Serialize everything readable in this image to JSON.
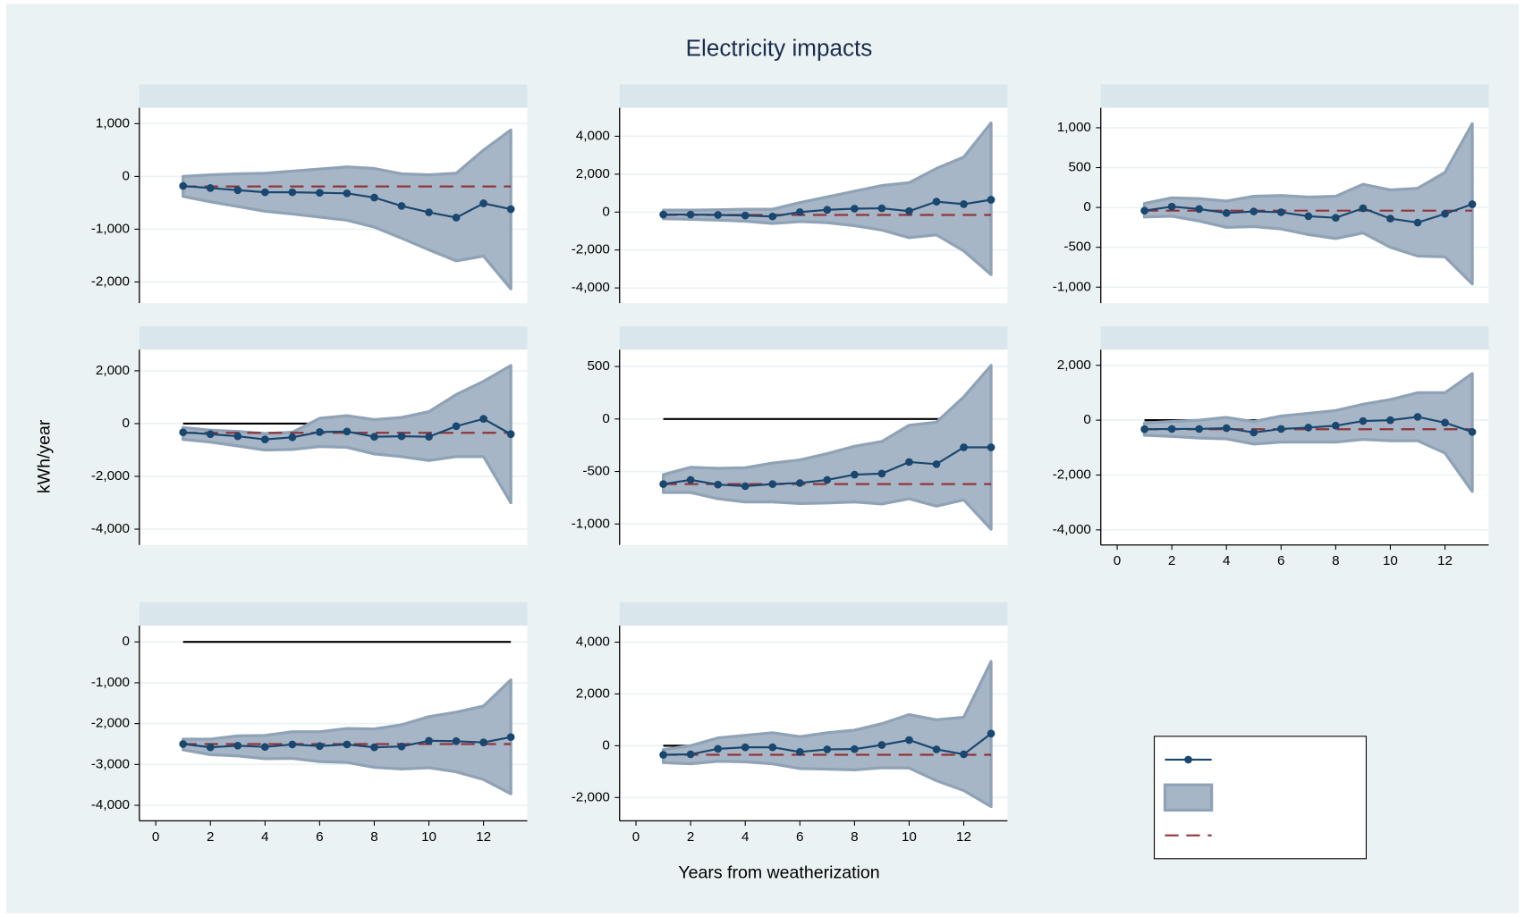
{
  "title": "Electricity impacts",
  "y_axis_label": "kWh/year",
  "x_axis_label": "Years from weatherization",
  "chart_data": [
    {
      "type": "line",
      "x": [
        1,
        2,
        3,
        4,
        5,
        6,
        7,
        8,
        9,
        10,
        11,
        12,
        13
      ],
      "xlim": [
        -0.6,
        13.6
      ],
      "ylim": [
        -2400,
        1300
      ],
      "yticks": [
        {
          "value": 1000,
          "label": "1,000"
        },
        0,
        {
          "value": -1000,
          "label": "-1,000"
        },
        {
          "value": -2000,
          "label": "-2,000"
        }
      ],
      "grid": true,
      "series": [
        {
          "color": "#1a476f",
          "values": [
            -180,
            -220,
            -260,
            -300,
            -300,
            -310,
            -320,
            -400,
            -560,
            -680,
            -780,
            -510,
            -620
          ]
        }
      ],
      "band": {
        "color": "#a7b6c6",
        "upper": [
          0,
          30,
          50,
          60,
          100,
          140,
          180,
          150,
          50,
          30,
          60,
          500,
          880
        ],
        "lower": [
          -380,
          -480,
          -570,
          -660,
          -710,
          -770,
          -830,
          -960,
          -1170,
          -1390,
          -1600,
          -1510,
          -2130
        ]
      },
      "mean": {
        "color": "#90353b",
        "value": -190
      },
      "reference_line": 0
    },
    {
      "type": "line",
      "x": [
        1,
        2,
        3,
        4,
        5,
        6,
        7,
        8,
        9,
        10,
        11,
        12,
        13
      ],
      "xlim": [
        -0.6,
        13.6
      ],
      "ylim": [
        -4800,
        5500
      ],
      "yticks": [
        {
          "value": 4000,
          "label": "4,000"
        },
        {
          "value": 2000,
          "label": "2,000"
        },
        0,
        {
          "value": -2000,
          "label": "-2,000"
        },
        {
          "value": -4000,
          "label": "-4,000"
        }
      ],
      "grid": true,
      "series": [
        {
          "color": "#1a476f",
          "values": [
            -130,
            -130,
            -150,
            -180,
            -230,
            0,
            120,
            180,
            200,
            50,
            550,
            420,
            650
          ]
        }
      ],
      "band": {
        "color": "#a7b6c6",
        "upper": [
          100,
          100,
          120,
          150,
          150,
          500,
          800,
          1100,
          1400,
          1550,
          2300,
          2900,
          4700
        ],
        "lower": [
          -350,
          -380,
          -420,
          -480,
          -600,
          -500,
          -560,
          -720,
          -950,
          -1350,
          -1200,
          -2050,
          -3300
        ]
      },
      "mean": {
        "color": "#90353b",
        "value": -150
      },
      "reference_line": 0
    },
    {
      "type": "line",
      "x": [
        1,
        2,
        3,
        4,
        5,
        6,
        7,
        8,
        9,
        10,
        11,
        12,
        13
      ],
      "xlim": [
        -0.6,
        13.6
      ],
      "ylim": [
        -1200,
        1250
      ],
      "yticks": [
        {
          "value": 1000,
          "label": "1,000"
        },
        500,
        0,
        -500,
        {
          "value": -1000,
          "label": "-1,000"
        }
      ],
      "grid": true,
      "series": [
        {
          "color": "#1a476f",
          "values": [
            -40,
            10,
            -20,
            -70,
            -50,
            -60,
            -110,
            -130,
            -10,
            -140,
            -190,
            -80,
            40
          ]
        }
      ],
      "band": {
        "color": "#a7b6c6",
        "upper": [
          50,
          120,
          110,
          80,
          140,
          150,
          130,
          140,
          290,
          220,
          240,
          440,
          1050
        ],
        "lower": [
          -120,
          -110,
          -170,
          -250,
          -240,
          -270,
          -340,
          -390,
          -320,
          -500,
          -610,
          -620,
          -960
        ]
      },
      "mean": {
        "color": "#90353b",
        "value": -40
      },
      "reference_line": 0
    },
    {
      "type": "line",
      "x": [
        1,
        2,
        3,
        4,
        5,
        6,
        7,
        8,
        9,
        10,
        11,
        12,
        13
      ],
      "xlim": [
        -0.6,
        13.6
      ],
      "ylim": [
        -4600,
        2800
      ],
      "yticks": [
        {
          "value": 2000,
          "label": "2,000"
        },
        0,
        {
          "value": -2000,
          "label": "-2,000"
        },
        {
          "value": -4000,
          "label": "-4,000"
        }
      ],
      "grid": true,
      "series": [
        {
          "color": "#1a476f",
          "values": [
            -330,
            -400,
            -480,
            -600,
            -520,
            -320,
            -300,
            -500,
            -480,
            -500,
            -100,
            180,
            -400
          ]
        }
      ],
      "band": {
        "color": "#a7b6c6",
        "upper": [
          -150,
          -250,
          -300,
          -380,
          -330,
          200,
          300,
          150,
          230,
          450,
          1100,
          1600,
          2200
        ],
        "lower": [
          -600,
          -700,
          -850,
          -1000,
          -980,
          -870,
          -900,
          -1150,
          -1250,
          -1400,
          -1250,
          -1250,
          -3000
        ]
      },
      "mean": {
        "color": "#90353b",
        "value": -350
      },
      "reference_line": 0
    },
    {
      "type": "line",
      "x": [
        1,
        2,
        3,
        4,
        5,
        6,
        7,
        8,
        9,
        10,
        11,
        12,
        13
      ],
      "xlim": [
        -0.6,
        13.6
      ],
      "ylim": [
        -1200,
        660
      ],
      "yticks": [
        500,
        0,
        -500,
        {
          "value": -1000,
          "label": "-1,000"
        }
      ],
      "grid": true,
      "series": [
        {
          "color": "#1a476f",
          "values": [
            -620,
            -580,
            -625,
            -640,
            -620,
            -610,
            -580,
            -530,
            -520,
            -410,
            -430,
            -270,
            -270
          ]
        }
      ],
      "band": {
        "color": "#a7b6c6",
        "upper": [
          -530,
          -460,
          -470,
          -465,
          -420,
          -390,
          -330,
          -260,
          -215,
          -60,
          -30,
          210,
          510
        ],
        "lower": [
          -700,
          -700,
          -760,
          -790,
          -790,
          -805,
          -800,
          -790,
          -810,
          -760,
          -830,
          -770,
          -1050
        ]
      },
      "mean": {
        "color": "#90353b",
        "value": -620
      },
      "reference_line": 0
    },
    {
      "type": "line",
      "x": [
        1,
        2,
        3,
        4,
        5,
        6,
        7,
        8,
        9,
        10,
        11,
        12,
        13
      ],
      "xlim": [
        -0.6,
        13.6
      ],
      "ylim": [
        -4550,
        2570
      ],
      "xticks": [
        0,
        2,
        4,
        6,
        8,
        10,
        12
      ],
      "yticks": [
        {
          "value": 2000,
          "label": "2,000"
        },
        0,
        {
          "value": -2000,
          "label": "-2,000"
        },
        {
          "value": -4000,
          "label": "-4,000"
        }
      ],
      "grid": true,
      "series": [
        {
          "color": "#1a476f",
          "values": [
            -330,
            -320,
            -320,
            -290,
            -450,
            -320,
            -270,
            -200,
            -30,
            0,
            120,
            -90,
            -430
          ]
        }
      ],
      "band": {
        "color": "#a7b6c6",
        "upper": [
          -100,
          -50,
          0,
          100,
          -50,
          150,
          250,
          350,
          580,
          750,
          1000,
          1000,
          1700
        ],
        "lower": [
          -550,
          -590,
          -650,
          -680,
          -870,
          -800,
          -800,
          -800,
          -700,
          -750,
          -750,
          -1200,
          -2600
        ]
      },
      "mean": {
        "color": "#90353b",
        "value": -330
      },
      "reference_line": 0
    },
    {
      "type": "line",
      "x": [
        1,
        2,
        3,
        4,
        5,
        6,
        7,
        8,
        9,
        10,
        11,
        12,
        13
      ],
      "xlim": [
        -0.6,
        13.6
      ],
      "ylim": [
        -4380,
        400
      ],
      "xticks": [
        0,
        2,
        4,
        6,
        8,
        10,
        12
      ],
      "yticks": [
        0,
        {
          "value": -1000,
          "label": "-1,000"
        },
        {
          "value": -2000,
          "label": "-2,000"
        },
        {
          "value": -3000,
          "label": "-3,000"
        },
        {
          "value": -4000,
          "label": "-4,000"
        }
      ],
      "grid": true,
      "series": [
        {
          "color": "#1a476f",
          "values": [
            -2500,
            -2580,
            -2540,
            -2570,
            -2510,
            -2550,
            -2510,
            -2580,
            -2560,
            -2420,
            -2430,
            -2460,
            -2330
          ]
        }
      ],
      "band": {
        "color": "#a7b6c6",
        "upper": [
          -2380,
          -2380,
          -2300,
          -2290,
          -2200,
          -2200,
          -2120,
          -2130,
          -2030,
          -1830,
          -1720,
          -1570,
          -930
        ],
        "lower": [
          -2640,
          -2760,
          -2790,
          -2860,
          -2850,
          -2930,
          -2950,
          -3070,
          -3110,
          -3080,
          -3180,
          -3370,
          -3720
        ]
      },
      "mean": {
        "color": "#90353b",
        "value": -2500
      },
      "reference_line": 0
    },
    {
      "type": "line",
      "x": [
        1,
        2,
        3,
        4,
        5,
        6,
        7,
        8,
        9,
        10,
        11,
        12,
        13
      ],
      "xlim": [
        -0.6,
        13.6
      ],
      "ylim": [
        -2900,
        4640
      ],
      "xticks": [
        0,
        2,
        4,
        6,
        8,
        10,
        12
      ],
      "yticks": [
        {
          "value": 4000,
          "label": "4,000"
        },
        {
          "value": 2000,
          "label": "2,000"
        },
        0,
        {
          "value": -2000,
          "label": "-2,000"
        }
      ],
      "grid": true,
      "series": [
        {
          "color": "#1a476f",
          "values": [
            -350,
            -330,
            -120,
            -60,
            -60,
            -240,
            -140,
            -130,
            30,
            220,
            -140,
            -330,
            470
          ]
        }
      ],
      "band": {
        "color": "#a7b6c6",
        "upper": [
          -150,
          0,
          300,
          400,
          500,
          350,
          500,
          600,
          850,
          1200,
          1000,
          1100,
          3250
        ],
        "lower": [
          -650,
          -700,
          -600,
          -620,
          -700,
          -880,
          -900,
          -930,
          -850,
          -860,
          -1350,
          -1730,
          -2350
        ]
      },
      "mean": {
        "color": "#90353b",
        "value": -350
      },
      "reference_line": 0
    }
  ]
}
